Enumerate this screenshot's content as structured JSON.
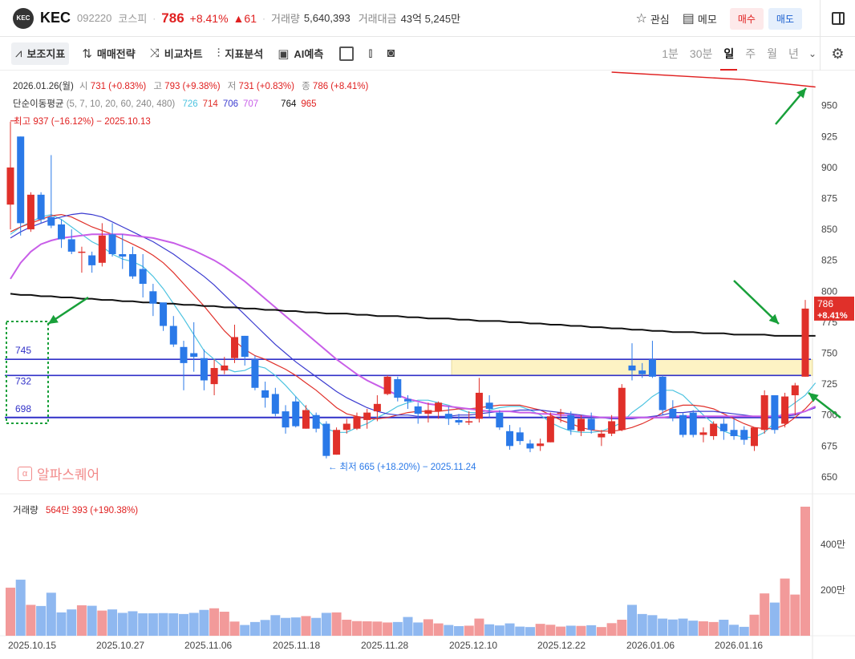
{
  "header": {
    "logo_text": "KEC",
    "name": "KEC",
    "code": "092220",
    "market": "코스피",
    "price": "786",
    "change_pct": "+8.41%",
    "change_abs": "▲61",
    "volume_label": "거래량",
    "volume": "5,640,393",
    "amount_label": "거래대금",
    "amount": "43억 5,245만",
    "watch_label": "관심",
    "memo_label": "메모",
    "buy_label": "매수",
    "sell_label": "매도"
  },
  "toolbar": {
    "tools": [
      "보조지표",
      "매매전략",
      "비교차트",
      "지표분석",
      "AI예측"
    ],
    "periods": [
      "1분",
      "30분",
      "일",
      "주",
      "월",
      "년"
    ],
    "active_period": "일"
  },
  "legend": {
    "date_line": "2026.01.26(월)",
    "open_label": "시",
    "open": "731 (+0.83%)",
    "high_label": "고",
    "high": "793 (+9.38%)",
    "low_label": "저",
    "low": "731 (+0.83%)",
    "close_label": "종",
    "close": "786 (+8.41%)",
    "ma_label": "단순이동평균",
    "ma_periods": "(5, 7, 10, 20, 60, 240, 480)",
    "ma_values": [
      {
        "value": "726",
        "color": "#4cc3e0"
      },
      {
        "value": "714",
        "color": "#e0302a"
      },
      {
        "value": "706",
        "color": "#3b3bd0"
      },
      {
        "value": "707",
        "color": "#c85ee8"
      },
      {
        "value": "",
        "color": "#cccccc"
      },
      {
        "value": "764",
        "color": "#111111"
      },
      {
        "value": "965",
        "color": "#e02020"
      }
    ],
    "high_marker": "최고 937 (−16.12%) − 2025.10.13",
    "low_marker": "최저 665 (+18.20%) − 2025.11.24",
    "volume_label": "거래량",
    "volume_value": "564만 393 (+190.38%)"
  },
  "watermark": "알파스퀘어",
  "levels": [
    "745",
    "732",
    "698"
  ],
  "colors": {
    "up": "#e0302a",
    "down": "#2a79e8",
    "vol_up": "#f29a9a",
    "vol_down": "#8fb8f0"
  },
  "chart_data": {
    "type": "candlestick",
    "y_ticks": [
      650,
      675,
      700,
      725,
      750,
      775,
      800,
      825,
      850,
      875,
      900,
      925,
      950
    ],
    "ylim": [
      637,
      977
    ],
    "volume_ticks": [
      "200만",
      "400만"
    ],
    "x_labels": [
      "2025.10.15",
      "2025.10.27",
      "2025.11.06",
      "2025.11.18",
      "2025.11.28",
      "2025.12.10",
      "2025.12.22",
      "2026.01.06",
      "2026.01.16"
    ],
    "last_price_label": "786",
    "last_change_label": "+8.41%",
    "candles": [
      {
        "o": 870,
        "h": 937,
        "l": 850,
        "c": 900,
        "v": 2.1
      },
      {
        "o": 925,
        "h": 925,
        "l": 845,
        "c": 855,
        "v": 2.45
      },
      {
        "o": 850,
        "h": 880,
        "l": 848,
        "c": 878,
        "v": 1.35
      },
      {
        "o": 878,
        "h": 880,
        "l": 855,
        "c": 858,
        "v": 1.3
      },
      {
        "o": 860,
        "h": 910,
        "l": 851,
        "c": 853,
        "v": 1.88
      },
      {
        "o": 854,
        "h": 858,
        "l": 835,
        "c": 842,
        "v": 1.02
      },
      {
        "o": 842,
        "h": 850,
        "l": 830,
        "c": 832,
        "v": 1.15
      },
      {
        "o": 832,
        "h": 836,
        "l": 815,
        "c": 832,
        "v": 1.33
      },
      {
        "o": 829,
        "h": 832,
        "l": 815,
        "c": 821,
        "v": 1.31
      },
      {
        "o": 823,
        "h": 855,
        "l": 820,
        "c": 845,
        "v": 1.1
      },
      {
        "o": 846,
        "h": 855,
        "l": 828,
        "c": 830,
        "v": 1.15
      },
      {
        "o": 830,
        "h": 846,
        "l": 818,
        "c": 828,
        "v": 1.0
      },
      {
        "o": 830,
        "h": 836,
        "l": 810,
        "c": 812,
        "v": 1.07
      },
      {
        "o": 818,
        "h": 830,
        "l": 795,
        "c": 806,
        "v": 0.98
      },
      {
        "o": 800,
        "h": 806,
        "l": 780,
        "c": 790,
        "v": 0.98
      },
      {
        "o": 791,
        "h": 790,
        "l": 768,
        "c": 772,
        "v": 0.99
      },
      {
        "o": 772,
        "h": 780,
        "l": 755,
        "c": 757,
        "v": 0.98
      },
      {
        "o": 755,
        "h": 760,
        "l": 720,
        "c": 742,
        "v": 0.95
      },
      {
        "o": 750,
        "h": 775,
        "l": 735,
        "c": 747,
        "v": 1.0
      },
      {
        "o": 746,
        "h": 753,
        "l": 720,
        "c": 728,
        "v": 1.13
      },
      {
        "o": 725,
        "h": 745,
        "l": 716,
        "c": 738,
        "v": 1.2
      },
      {
        "o": 736,
        "h": 747,
        "l": 733,
        "c": 740,
        "v": 1.05
      },
      {
        "o": 746,
        "h": 773,
        "l": 742,
        "c": 763,
        "v": 0.62
      },
      {
        "o": 764,
        "h": 764,
        "l": 740,
        "c": 747,
        "v": 0.47
      },
      {
        "o": 745,
        "h": 748,
        "l": 720,
        "c": 722,
        "v": 0.6
      },
      {
        "o": 720,
        "h": 727,
        "l": 706,
        "c": 714,
        "v": 0.69
      },
      {
        "o": 717,
        "h": 722,
        "l": 699,
        "c": 701,
        "v": 0.9
      },
      {
        "o": 703,
        "h": 708,
        "l": 685,
        "c": 690,
        "v": 0.78
      },
      {
        "o": 711,
        "h": 715,
        "l": 690,
        "c": 691,
        "v": 0.8
      },
      {
        "o": 689,
        "h": 708,
        "l": 689,
        "c": 704,
        "v": 0.86
      },
      {
        "o": 700,
        "h": 702,
        "l": 686,
        "c": 689,
        "v": 0.78
      },
      {
        "o": 693,
        "h": 695,
        "l": 665,
        "c": 667,
        "v": 1.0
      },
      {
        "o": 668,
        "h": 690,
        "l": 668,
        "c": 688,
        "v": 1.02
      },
      {
        "o": 688,
        "h": 697,
        "l": 685,
        "c": 693,
        "v": 0.7
      },
      {
        "o": 689,
        "h": 702,
        "l": 688,
        "c": 699,
        "v": 0.64
      },
      {
        "o": 696,
        "h": 705,
        "l": 689,
        "c": 702,
        "v": 0.63
      },
      {
        "o": 703,
        "h": 716,
        "l": 695,
        "c": 709,
        "v": 0.62
      },
      {
        "o": 717,
        "h": 732,
        "l": 716,
        "c": 731,
        "v": 0.58
      },
      {
        "o": 729,
        "h": 731,
        "l": 711,
        "c": 714,
        "v": 0.6
      },
      {
        "o": 713,
        "h": 716,
        "l": 705,
        "c": 711,
        "v": 0.82
      },
      {
        "o": 707,
        "h": 710,
        "l": 693,
        "c": 701,
        "v": 0.58
      },
      {
        "o": 701,
        "h": 710,
        "l": 694,
        "c": 704,
        "v": 0.72
      },
      {
        "o": 703,
        "h": 711,
        "l": 697,
        "c": 710,
        "v": 0.54
      },
      {
        "o": 701,
        "h": 707,
        "l": 692,
        "c": 697,
        "v": 0.47
      },
      {
        "o": 696,
        "h": 701,
        "l": 692,
        "c": 694,
        "v": 0.42
      },
      {
        "o": 694,
        "h": 703,
        "l": 692,
        "c": 695,
        "v": 0.44
      },
      {
        "o": 697,
        "h": 730,
        "l": 694,
        "c": 718,
        "v": 0.75
      },
      {
        "o": 710,
        "h": 716,
        "l": 698,
        "c": 705,
        "v": 0.5
      },
      {
        "o": 702,
        "h": 704,
        "l": 688,
        "c": 690,
        "v": 0.45
      },
      {
        "o": 687,
        "h": 692,
        "l": 672,
        "c": 675,
        "v": 0.54
      },
      {
        "o": 686,
        "h": 690,
        "l": 676,
        "c": 679,
        "v": 0.4
      },
      {
        "o": 677,
        "h": 680,
        "l": 670,
        "c": 673,
        "v": 0.38
      },
      {
        "o": 675,
        "h": 681,
        "l": 671,
        "c": 677,
        "v": 0.52
      },
      {
        "o": 678,
        "h": 702,
        "l": 678,
        "c": 699,
        "v": 0.48
      },
      {
        "o": 701,
        "h": 705,
        "l": 694,
        "c": 702,
        "v": 0.4
      },
      {
        "o": 700,
        "h": 703,
        "l": 684,
        "c": 688,
        "v": 0.44
      },
      {
        "o": 687,
        "h": 700,
        "l": 683,
        "c": 697,
        "v": 0.43
      },
      {
        "o": 697,
        "h": 702,
        "l": 685,
        "c": 688,
        "v": 0.46
      },
      {
        "o": 682,
        "h": 688,
        "l": 675,
        "c": 685,
        "v": 0.38
      },
      {
        "o": 685,
        "h": 700,
        "l": 683,
        "c": 695,
        "v": 0.55
      },
      {
        "o": 688,
        "h": 725,
        "l": 687,
        "c": 722,
        "v": 0.7
      },
      {
        "o": 740,
        "h": 758,
        "l": 728,
        "c": 736,
        "v": 1.35
      },
      {
        "o": 736,
        "h": 742,
        "l": 730,
        "c": 733,
        "v": 0.95
      },
      {
        "o": 745,
        "h": 760,
        "l": 730,
        "c": 731,
        "v": 0.9
      },
      {
        "o": 731,
        "h": 732,
        "l": 700,
        "c": 704,
        "v": 0.75
      },
      {
        "o": 705,
        "h": 712,
        "l": 695,
        "c": 698,
        "v": 0.71
      },
      {
        "o": 700,
        "h": 702,
        "l": 682,
        "c": 684,
        "v": 0.75
      },
      {
        "o": 702,
        "h": 704,
        "l": 682,
        "c": 684,
        "v": 0.66
      },
      {
        "o": 684,
        "h": 690,
        "l": 678,
        "c": 686,
        "v": 0.63
      },
      {
        "o": 683,
        "h": 695,
        "l": 680,
        "c": 693,
        "v": 0.6
      },
      {
        "o": 693,
        "h": 697,
        "l": 680,
        "c": 687,
        "v": 0.7
      },
      {
        "o": 688,
        "h": 697,
        "l": 680,
        "c": 683,
        "v": 0.48
      },
      {
        "o": 688,
        "h": 691,
        "l": 676,
        "c": 680,
        "v": 0.39
      },
      {
        "o": 675,
        "h": 690,
        "l": 671,
        "c": 690,
        "v": 0.92
      },
      {
        "o": 688,
        "h": 720,
        "l": 685,
        "c": 716,
        "v": 1.85
      },
      {
        "o": 716,
        "h": 716,
        "l": 685,
        "c": 688,
        "v": 1.45
      },
      {
        "o": 693,
        "h": 718,
        "l": 690,
        "c": 715,
        "v": 2.5
      },
      {
        "o": 716,
        "h": 726,
        "l": 700,
        "c": 724,
        "v": 1.8
      },
      {
        "o": 731,
        "h": 793,
        "l": 731,
        "c": 786,
        "v": 5.64
      }
    ],
    "ma_lines": [
      {
        "name": "5",
        "color": "#4cc3e0",
        "values": [
          846,
          852,
          856,
          860,
          862,
          858,
          852,
          846,
          840,
          836,
          830,
          826,
          824,
          820,
          812,
          802,
          790,
          778,
          765,
          752,
          745,
          738,
          735,
          736,
          740,
          738,
          732,
          724,
          715,
          706,
          697,
          689,
          686,
          686,
          690,
          693,
          698,
          702,
          707,
          710,
          712,
          712,
          710,
          708,
          705,
          702,
          702,
          704,
          706,
          707,
          707,
          704,
          700,
          694,
          690,
          687,
          686,
          686,
          687,
          690,
          694,
          702,
          708,
          715,
          720,
          720,
          716,
          708,
          700,
          693,
          687,
          684,
          682,
          682,
          686,
          694,
          704,
          710,
          716,
          726
        ]
      },
      {
        "name": "10",
        "color": "#e0302a",
        "values": [
          848,
          852,
          855,
          858,
          861,
          862,
          860,
          856,
          852,
          849,
          846,
          842,
          838,
          834,
          829,
          823,
          815,
          806,
          797,
          788,
          778,
          768,
          760,
          753,
          748,
          745,
          741,
          737,
          732,
          726,
          720,
          713,
          706,
          701,
          699,
          697,
          697,
          698,
          700,
          702,
          703,
          703,
          703,
          704,
          705,
          705,
          706,
          707,
          708,
          708,
          708,
          706,
          704,
          700,
          696,
          693,
          690,
          688,
          687,
          687,
          688,
          690,
          693,
          697,
          702,
          706,
          708,
          708,
          707,
          705,
          701,
          697,
          693,
          690,
          689,
          689,
          692,
          698,
          705,
          714
        ]
      },
      {
        "name": "20",
        "color": "#3b3bd0",
        "values": [
          843,
          848,
          852,
          855,
          858,
          860,
          862,
          863,
          862,
          860,
          856,
          852,
          848,
          844,
          840,
          835,
          830,
          824,
          818,
          812,
          805,
          797,
          789,
          781,
          773,
          765,
          757,
          750,
          743,
          737,
          731,
          725,
          719,
          714,
          710,
          706,
          703,
          701,
          700,
          700,
          699,
          699,
          699,
          699,
          700,
          700,
          701,
          702,
          703,
          703,
          704,
          704,
          704,
          703,
          702,
          701,
          700,
          699,
          698,
          697,
          697,
          697,
          698,
          699,
          700,
          702,
          702,
          703,
          703,
          703,
          702,
          701,
          700,
          699,
          698,
          698,
          699,
          700,
          703,
          706
        ]
      },
      {
        "name": "60",
        "color": "#c85ee8",
        "values": [
          810,
          823,
          832,
          838,
          841,
          843,
          844,
          845,
          846,
          846,
          846,
          846,
          845,
          844,
          843,
          841,
          839,
          836,
          833,
          829,
          825,
          820,
          814,
          808,
          801,
          794,
          787,
          780,
          773,
          766,
          759,
          752,
          745,
          739,
          733,
          728,
          724,
          720,
          716,
          713,
          711,
          709,
          708,
          707,
          706,
          705,
          704,
          703,
          703,
          703,
          702,
          702,
          701,
          701,
          700,
          700,
          699,
          699,
          698,
          698,
          698,
          698,
          698,
          698,
          698,
          699,
          699,
          699,
          699,
          699,
          699,
          699,
          699,
          699,
          699,
          699,
          700,
          701,
          703,
          707
        ]
      },
      {
        "name": "240",
        "color": "#111111",
        "values": [
          798,
          797,
          797,
          796,
          796,
          795,
          795,
          794,
          794,
          793,
          793,
          792,
          792,
          791,
          791,
          790,
          790,
          789,
          789,
          788,
          788,
          787,
          787,
          786,
          786,
          785,
          785,
          784,
          784,
          783,
          783,
          782,
          782,
          782,
          781,
          781,
          780,
          780,
          780,
          779,
          779,
          778,
          778,
          778,
          777,
          777,
          776,
          776,
          776,
          775,
          775,
          774,
          774,
          773,
          773,
          772,
          772,
          771,
          771,
          770,
          770,
          769,
          769,
          768,
          768,
          767,
          767,
          767,
          766,
          766,
          766,
          765,
          765,
          765,
          765,
          764,
          764,
          764,
          764,
          764
        ]
      }
    ],
    "line_480_partial": [
      {
        "i": 59,
        "v": 977
      },
      {
        "i": 72,
        "v": 971
      },
      {
        "i": 79,
        "v": 965
      }
    ]
  }
}
